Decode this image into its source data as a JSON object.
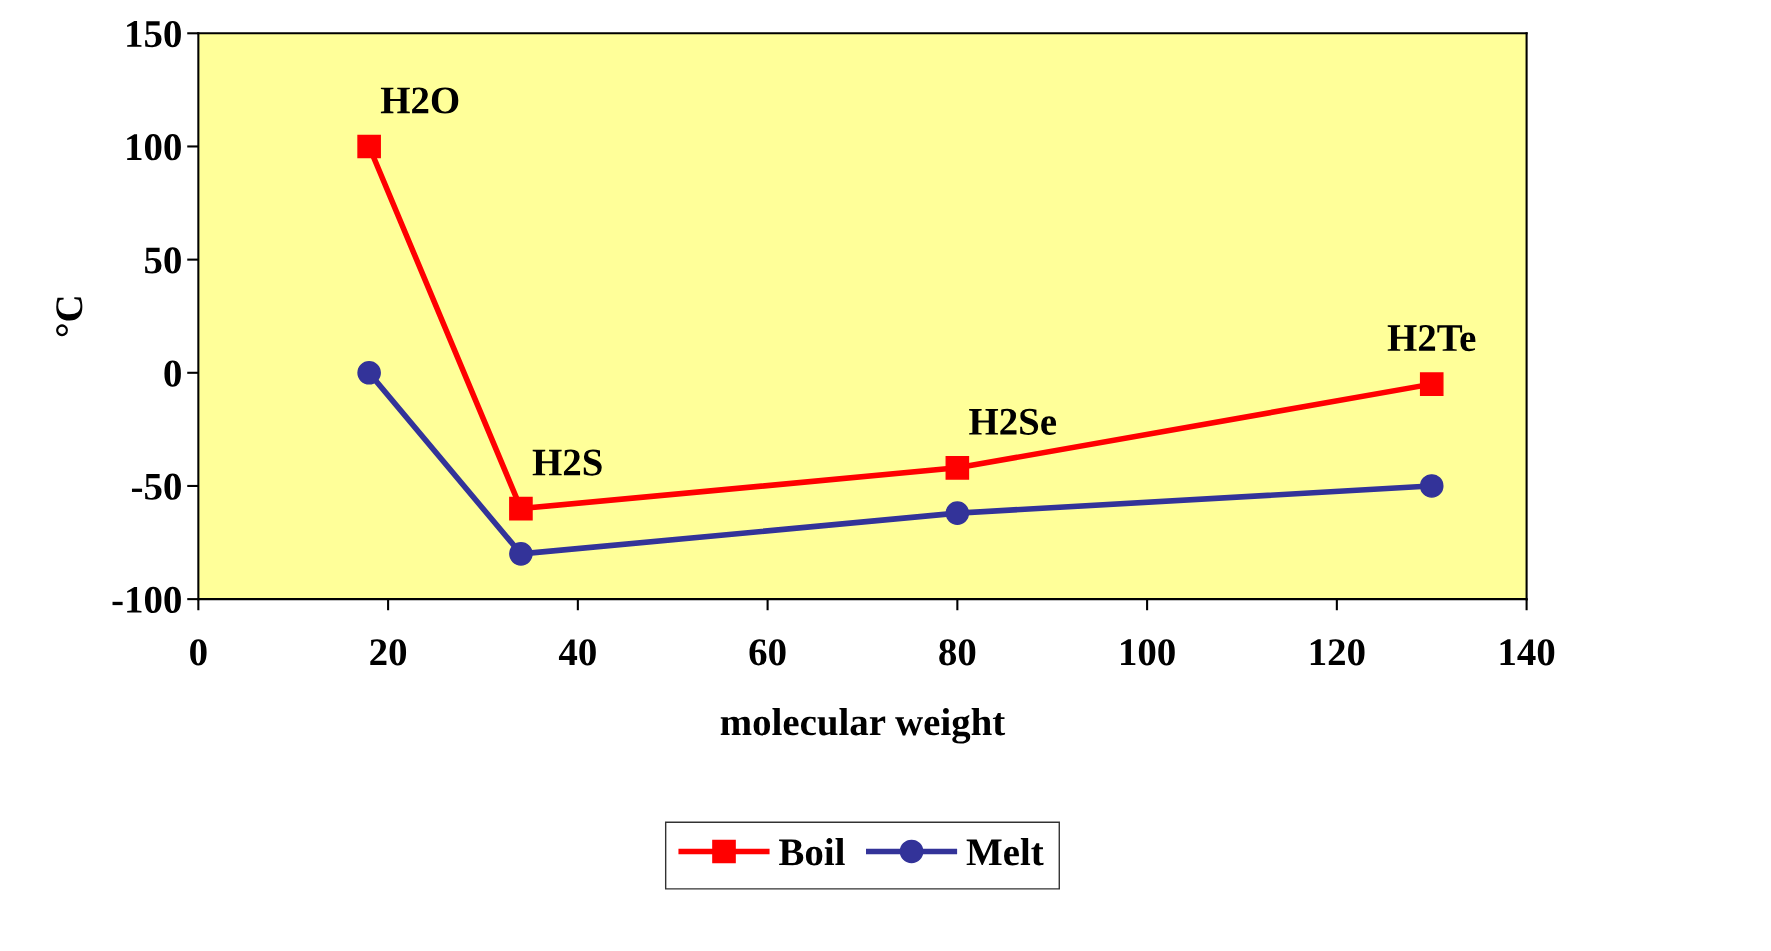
{
  "chart_data": {
    "type": "line",
    "xlabel": "molecular weight",
    "ylabel": "°C",
    "x": [
      18,
      34,
      80,
      130
    ],
    "series": [
      {
        "name": "Boil",
        "color": "#ff0000",
        "values": [
          100,
          -60,
          -42,
          -5
        ],
        "marker": "square"
      },
      {
        "name": "Melt",
        "color": "#333399",
        "values": [
          0,
          -80,
          -62,
          -50
        ],
        "marker": "circle"
      }
    ],
    "annotations": [
      {
        "text": "H2O",
        "x": 18,
        "y": 100
      },
      {
        "text": "H2S",
        "x": 34,
        "y": -60
      },
      {
        "text": "H2Se",
        "x": 80,
        "y": -42
      },
      {
        "text": "H2Te",
        "x": 130,
        "y": -5
      }
    ],
    "xlim": [
      0,
      140
    ],
    "xticks": [
      0,
      20,
      40,
      60,
      80,
      100,
      120,
      140
    ],
    "ylim": [
      -100,
      150
    ],
    "yticks": [
      -100,
      -50,
      0,
      50,
      100,
      150
    ],
    "grid": false,
    "legend": "bottom",
    "line_style": "solid"
  }
}
